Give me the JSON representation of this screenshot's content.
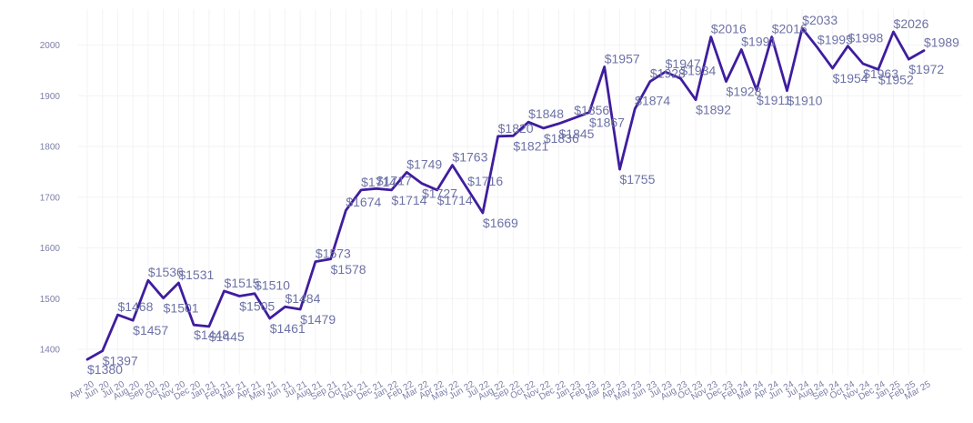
{
  "chart_data": {
    "type": "line",
    "title": "",
    "xlabel": "",
    "ylabel": "",
    "ylim": [
      1350,
      2060
    ],
    "yticks": [
      1400,
      1500,
      1600,
      1700,
      1800,
      1900,
      2000
    ],
    "grid": true,
    "line_color": "#3f1d9e",
    "value_prefix": "$",
    "categories": [
      "Apr 20",
      "Jun 20",
      "Jul 20",
      "Aug 20",
      "Sep 20",
      "Oct 20",
      "Nov 20",
      "Dec 20",
      "Jan 21",
      "Feb 21",
      "Mar 21",
      "Apr 21",
      "May 21",
      "Jun 21",
      "Jul 21",
      "Aug 21",
      "Sep 21",
      "Oct 21",
      "Nov 21",
      "Dec 21",
      "Jan 22",
      "Feb 22",
      "Mar 22",
      "Apr 22",
      "May 22",
      "Jun 22",
      "Jul 22",
      "Aug 22",
      "Sep 22",
      "Oct 22",
      "Nov 22",
      "Dec 22",
      "Jan 23",
      "Feb 23",
      "Mar 23",
      "Apr 23",
      "May 23",
      "Jun 23",
      "Jul 23",
      "Aug 23",
      "Oct 23",
      "Nov 23",
      "Dec 23",
      "Feb 24",
      "Mar 24",
      "Apr 24",
      "Jun 24",
      "Jul 24",
      "Aug 24",
      "Sep 24",
      "Oct 24",
      "Nov 24",
      "Dec 24",
      "Jan 25",
      "Feb 25",
      "Mar 25"
    ],
    "values": [
      1380,
      1397,
      1468,
      1457,
      1536,
      1501,
      1531,
      1448,
      1445,
      1515,
      1505,
      1510,
      1461,
      1484,
      1479,
      1573,
      1578,
      1674,
      1714,
      1717,
      1714,
      1749,
      1727,
      1714,
      1763,
      1716,
      1669,
      1820,
      1821,
      1848,
      1836,
      1845,
      1856,
      1867,
      1957,
      1755,
      1874,
      1928,
      1947,
      1934,
      1892,
      2016,
      1928,
      1991,
      1911,
      2016,
      1910,
      2033,
      1995,
      1954,
      1998,
      1963,
      1952,
      2026,
      1972,
      1989
    ]
  }
}
